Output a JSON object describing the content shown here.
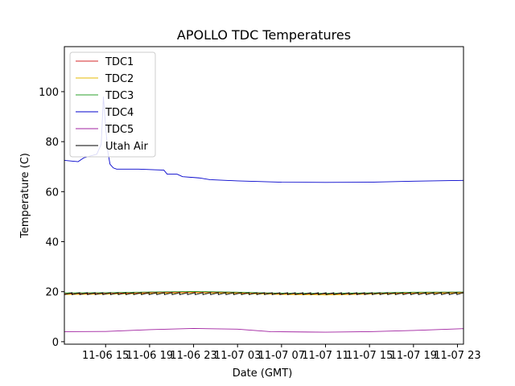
{
  "chart_data": {
    "type": "line",
    "title": "APOLLO TDC Temperatures",
    "xlabel": "Date (GMT)",
    "ylabel": "Temperature (C)",
    "x_ticks": [
      "11-06 15",
      "11-06 19",
      "11-06 23",
      "11-07 03",
      "11-07 07",
      "11-07 11",
      "11-07 15",
      "11-07 19",
      "11-07 23"
    ],
    "x_tick_hours": [
      15,
      19,
      23,
      27,
      31,
      35,
      39,
      43,
      47
    ],
    "xlim": [
      11.25,
      47.55
    ],
    "y_ticks": [
      "0",
      "20",
      "40",
      "60",
      "80",
      "100"
    ],
    "y_tick_values": [
      0,
      20,
      40,
      60,
      80,
      100
    ],
    "ylim": [
      -1,
      118
    ],
    "grid": false,
    "legend_position": "top-left",
    "series": [
      {
        "name": "TDC1",
        "color": "#d62728",
        "x": [
          11.25,
          15,
          19,
          23,
          27,
          31,
          35,
          39,
          43,
          47.55
        ],
        "values": [
          19.2,
          19.3,
          19.6,
          19.9,
          19.6,
          19.2,
          19.1,
          19.3,
          19.5,
          19.6
        ]
      },
      {
        "name": "TDC2",
        "color": "#e6b800",
        "x": [
          11.25,
          15,
          19,
          23,
          27,
          31,
          35,
          39,
          43,
          47.55
        ],
        "values": [
          18.9,
          19.0,
          19.3,
          19.6,
          19.3,
          18.9,
          18.7,
          19.0,
          19.3,
          19.4
        ]
      },
      {
        "name": "TDC3",
        "color": "#2ca02c",
        "x": [
          11.25,
          15,
          19,
          23,
          27,
          31,
          35,
          39,
          43,
          47.55
        ],
        "values": [
          19.5,
          19.6,
          19.9,
          20.1,
          19.8,
          19.4,
          19.3,
          19.5,
          19.8,
          19.9
        ]
      },
      {
        "name": "TDC4",
        "color": "#0000cc",
        "x": [
          11.25,
          12.5,
          13,
          13.8,
          14.2,
          14.6,
          14.8,
          15.0,
          15.2,
          15.4,
          15.7,
          16,
          18,
          20.3,
          20.6,
          21.5,
          22,
          23.5,
          24.5,
          27,
          31,
          35,
          39,
          43,
          47.55
        ],
        "values": [
          72.5,
          72.0,
          73.5,
          74.5,
          75.0,
          79.0,
          98.0,
          86.0,
          76.0,
          71.0,
          69.5,
          69.0,
          69.0,
          68.6,
          67.0,
          67.0,
          66.0,
          65.5,
          64.8,
          64.3,
          63.8,
          63.7,
          63.8,
          64.2,
          64.5
        ]
      },
      {
        "name": "TDC5",
        "color": "#a020a0",
        "x": [
          11.25,
          15,
          19,
          23,
          27,
          30,
          35,
          39,
          43,
          47.55
        ],
        "values": [
          4.0,
          4.1,
          4.8,
          5.3,
          5.0,
          4.0,
          3.8,
          4.0,
          4.5,
          5.2
        ]
      },
      {
        "name": "Utah Air",
        "color": "#000000",
        "pattern": "sawtooth",
        "period_hours": 0.7,
        "amplitude": 0.8,
        "x": [
          11.25,
          47.55
        ],
        "values": [
          19.2,
          19.2
        ]
      }
    ]
  }
}
